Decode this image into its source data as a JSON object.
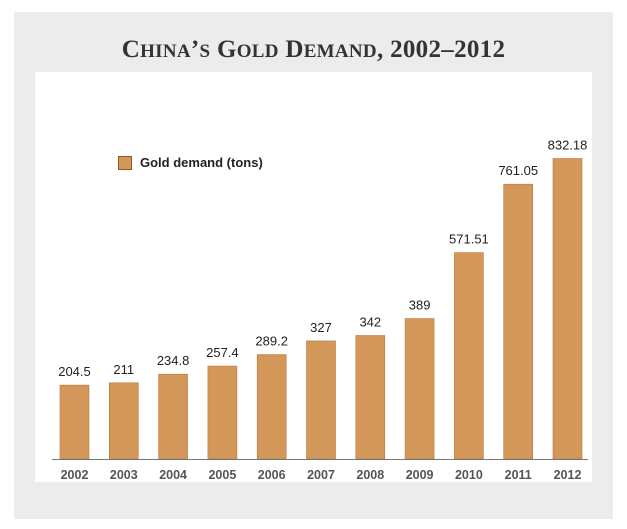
{
  "title_parts": [
    {
      "text": "C",
      "small": false
    },
    {
      "text": "HINA",
      "small": true
    },
    {
      "text": "’",
      "small": false
    },
    {
      "text": "S",
      "small": true
    },
    {
      "text": " G",
      "small": false
    },
    {
      "text": "OLD",
      "small": true
    },
    {
      "text": " D",
      "small": false
    },
    {
      "text": "EMAND",
      "small": true
    },
    {
      "text": ", 2002–2012",
      "small": false
    }
  ],
  "chart_data": {
    "type": "bar",
    "title": "CHINA’S GOLD DEMAND, 2002–2012",
    "categories": [
      "2002",
      "2003",
      "2004",
      "2005",
      "2006",
      "2007",
      "2008",
      "2009",
      "2010",
      "2011",
      "2012"
    ],
    "series": [
      {
        "name": "Gold demand (tons)",
        "values": [
          204.5,
          211,
          234.8,
          257.4,
          289.2,
          327,
          342,
          389,
          571.51,
          761.05,
          832.18
        ],
        "labels": [
          "204.5",
          "211",
          "234.8",
          "257.4",
          "289.2",
          "327",
          "342",
          "389",
          "571.51",
          "761.05",
          "832.18"
        ]
      }
    ],
    "ylim": [
      0,
      900
    ],
    "grid": false,
    "legend_position": "top-left",
    "colors": {
      "bar": "#d4975a",
      "bar_stroke": "#b9783d",
      "axis": "#777777"
    }
  }
}
